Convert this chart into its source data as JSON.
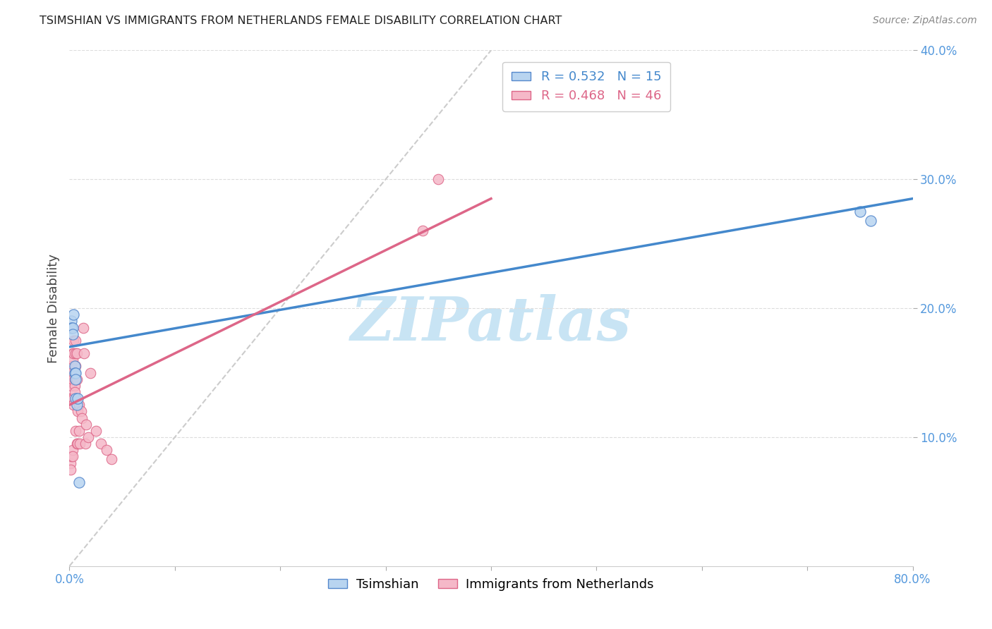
{
  "title": "TSIMSHIAN VS IMMIGRANTS FROM NETHERLANDS FEMALE DISABILITY CORRELATION CHART",
  "source": "Source: ZipAtlas.com",
  "ylabel": "Female Disability",
  "xlim": [
    0.0,
    0.8
  ],
  "ylim": [
    0.0,
    0.4
  ],
  "xtick_vals": [
    0.0,
    0.1,
    0.2,
    0.3,
    0.4,
    0.5,
    0.6,
    0.7,
    0.8
  ],
  "xtick_labels_shown": [
    "0.0%",
    "",
    "",
    "",
    "",
    "",
    "",
    "",
    "80.0%"
  ],
  "ytick_vals": [
    0.1,
    0.2,
    0.3,
    0.4
  ],
  "ytick_labels": [
    "10.0%",
    "20.0%",
    "30.0%",
    "40.0%"
  ],
  "tsimshian_x": [
    0.002,
    0.002,
    0.003,
    0.003,
    0.004,
    0.005,
    0.005,
    0.006,
    0.006,
    0.006,
    0.007,
    0.008,
    0.009,
    0.75,
    0.76
  ],
  "tsimshian_y": [
    0.19,
    0.185,
    0.185,
    0.18,
    0.195,
    0.155,
    0.15,
    0.15,
    0.145,
    0.13,
    0.125,
    0.13,
    0.065,
    0.275,
    0.268
  ],
  "netherlands_x": [
    0.001,
    0.001,
    0.001,
    0.002,
    0.002,
    0.002,
    0.002,
    0.002,
    0.003,
    0.003,
    0.003,
    0.003,
    0.003,
    0.004,
    0.004,
    0.004,
    0.004,
    0.005,
    0.005,
    0.005,
    0.006,
    0.006,
    0.006,
    0.006,
    0.007,
    0.007,
    0.007,
    0.008,
    0.008,
    0.009,
    0.009,
    0.01,
    0.011,
    0.012,
    0.013,
    0.014,
    0.015,
    0.016,
    0.018,
    0.02,
    0.025,
    0.03,
    0.035,
    0.04,
    0.335,
    0.35
  ],
  "netherlands_y": [
    0.13,
    0.08,
    0.075,
    0.155,
    0.15,
    0.14,
    0.13,
    0.085,
    0.165,
    0.16,
    0.145,
    0.09,
    0.085,
    0.175,
    0.165,
    0.13,
    0.125,
    0.145,
    0.14,
    0.135,
    0.175,
    0.165,
    0.155,
    0.105,
    0.165,
    0.145,
    0.095,
    0.12,
    0.095,
    0.125,
    0.105,
    0.095,
    0.12,
    0.115,
    0.185,
    0.165,
    0.095,
    0.11,
    0.1,
    0.15,
    0.105,
    0.095,
    0.09,
    0.083,
    0.26,
    0.3
  ],
  "tsimshian_color": "#b8d4f0",
  "tsimshian_edge_color": "#5588cc",
  "netherlands_color": "#f5b8c8",
  "netherlands_edge_color": "#dd6688",
  "blue_line_color": "#4488cc",
  "pink_line_color": "#dd6688",
  "diagonal_line_color": "#cccccc",
  "watermark": "ZIPatlas",
  "watermark_color": "#c8e4f4",
  "background_color": "#ffffff",
  "grid_color": "#dddddd",
  "tick_color": "#5599dd",
  "blue_trend_x0": 0.0,
  "blue_trend_y0": 0.17,
  "blue_trend_x1": 0.8,
  "blue_trend_y1": 0.285,
  "pink_trend_x0": 0.0,
  "pink_trend_y0": 0.125,
  "pink_trend_x1": 0.4,
  "pink_trend_y1": 0.285
}
